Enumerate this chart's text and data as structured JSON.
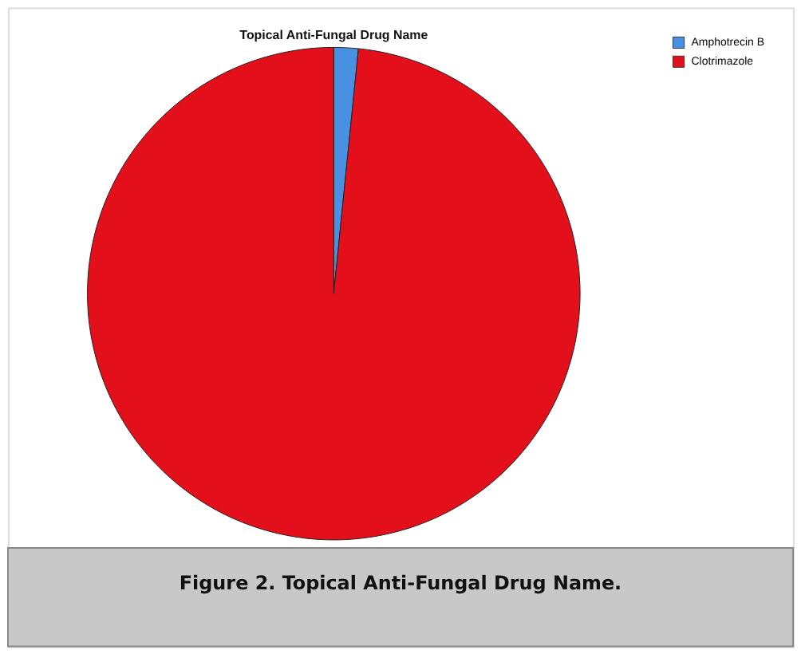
{
  "chart_data": {
    "type": "pie",
    "title": "Topical Anti-Fungal Drug Name",
    "categories": [
      "Amphotrecin B",
      "Clotrimazole"
    ],
    "values": [
      1.6,
      98.4
    ],
    "colors": [
      "#4a90e2",
      "#e3101c"
    ],
    "legend": "top right",
    "annotations": [
      "Figure 2. Topical Anti-Fungal Drug Name."
    ]
  }
}
